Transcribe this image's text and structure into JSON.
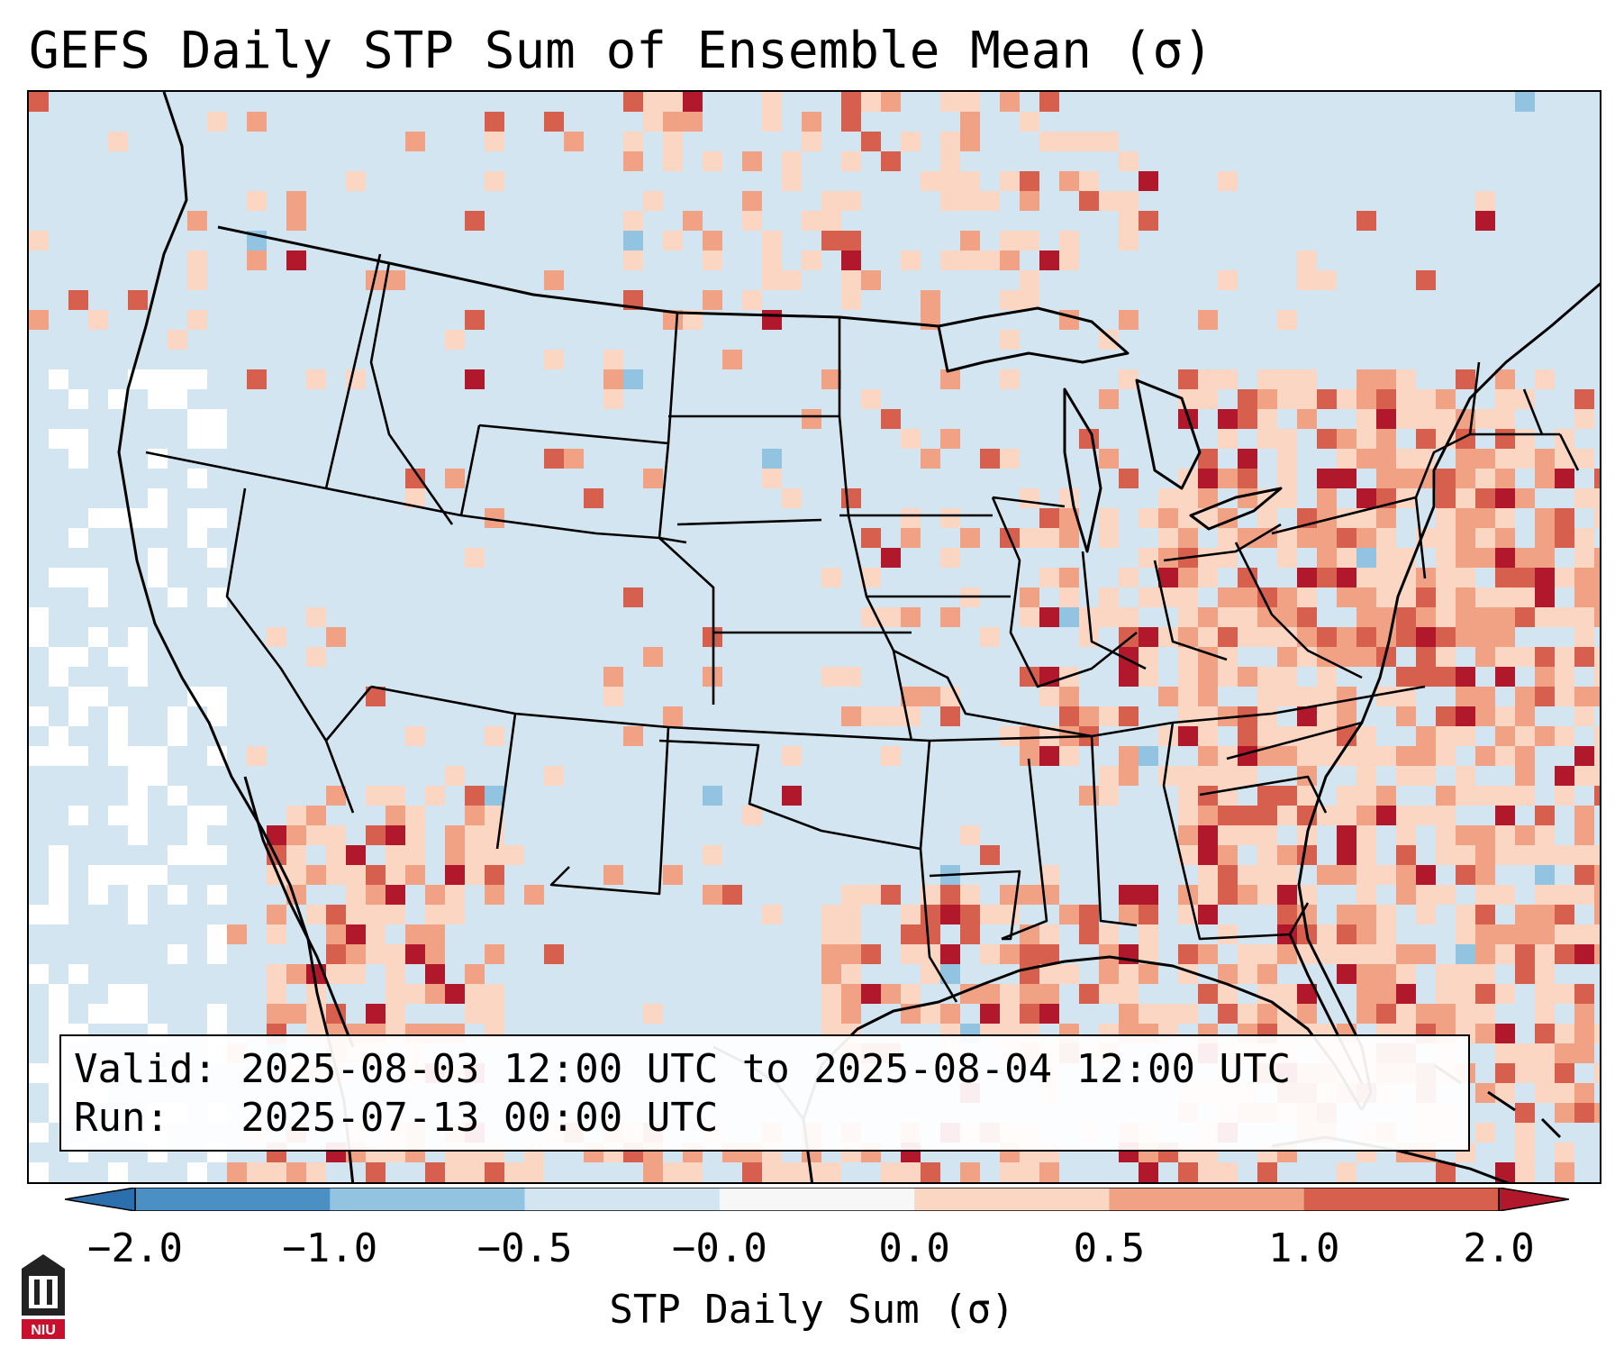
{
  "title": "GEFS Daily STP Sum of Ensemble Mean (σ)",
  "info": {
    "valid": "Valid: 2025-08-03 12:00 UTC to 2025-08-04 12:00 UTC",
    "run": "Run:   2025-07-13 00:00 UTC"
  },
  "colorbar": {
    "label": "STP Daily Sum (σ)",
    "ticks": [
      "−2.0",
      "−1.0",
      "−0.5",
      "−0.0",
      "0.0",
      "0.5",
      "1.0",
      "2.0"
    ],
    "bins": [
      {
        "from": -2.0,
        "to": -1.0,
        "color": "#4a90c4"
      },
      {
        "from": -1.0,
        "to": -0.5,
        "color": "#92c3e0"
      },
      {
        "from": -0.5,
        "to": -0.0,
        "color": "#d3e5f0"
      },
      {
        "from": -0.0,
        "to": 0.0,
        "color": "#f7f7f7"
      },
      {
        "from": 0.0,
        "to": 0.5,
        "color": "#fbd6c3"
      },
      {
        "from": 0.5,
        "to": 1.0,
        "color": "#f1a184"
      },
      {
        "from": 1.0,
        "to": 2.0,
        "color": "#d6604d"
      }
    ],
    "under_color": "#2c6fae",
    "over_color": "#b2182b"
  },
  "logo": {
    "text": "NIU"
  },
  "colors": {
    "background": "#d3e5f0",
    "neutral": "#ffffff",
    "light_red": "#fbd6c3",
    "mid_red": "#f1a184",
    "red": "#d6604d",
    "dark_red": "#b2182b",
    "blue": "#92c3e0"
  }
}
